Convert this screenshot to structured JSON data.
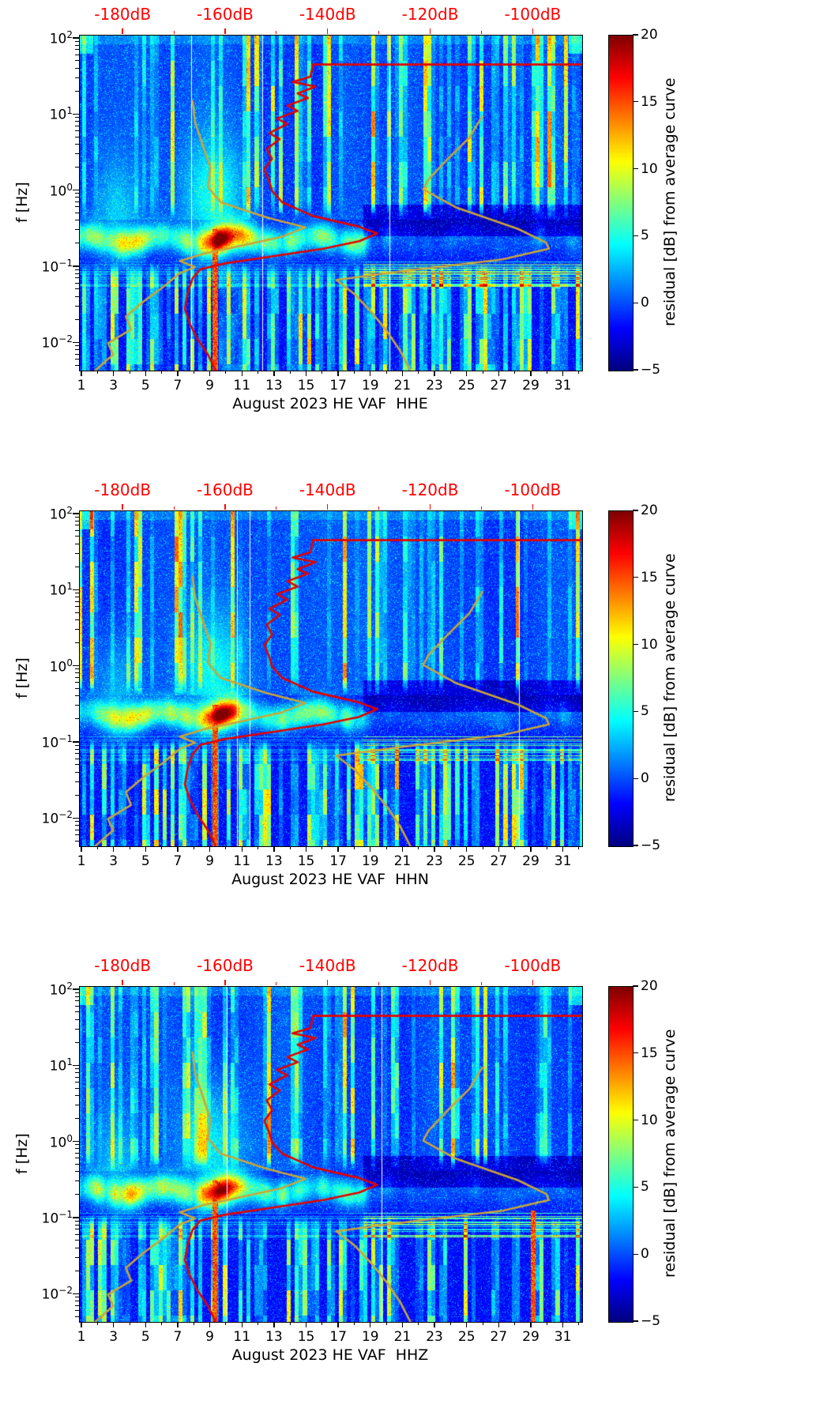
{
  "figure": {
    "y_axis": {
      "label": "f [Hz]",
      "tick_base": "10",
      "tick_exponents": [
        "2",
        "1",
        "0",
        "−1",
        "−2"
      ],
      "tick_values_log10": [
        2,
        1,
        0,
        -1,
        -2
      ],
      "range_log10": [
        -2.36,
        2.04
      ]
    },
    "x_axis": {
      "tick_labels": [
        "1",
        "3",
        "5",
        "7",
        "9",
        "11",
        "13",
        "15",
        "17",
        "19",
        "21",
        "23",
        "25",
        "27",
        "29",
        "31"
      ],
      "tick_days": [
        1,
        3,
        5,
        7,
        9,
        11,
        13,
        15,
        17,
        19,
        21,
        23,
        25,
        27,
        29,
        31
      ],
      "minor_days": [
        2,
        4,
        6,
        8,
        10,
        12,
        14,
        16,
        18,
        20,
        22,
        24,
        26,
        28,
        30,
        32
      ],
      "range_days": [
        0.85,
        32.15
      ]
    },
    "top_axis": {
      "tick_labels": [
        "-180dB",
        "-160dB",
        "-140dB",
        "-120dB",
        "-100dB"
      ],
      "tick_db": [
        -180,
        -160,
        -140,
        -120,
        -100
      ],
      "minor_db": [
        -170,
        -150,
        -130,
        -110
      ],
      "range_db": [
        -188.5,
        -90.5
      ],
      "color": "#ff0000"
    },
    "colorbar": {
      "label": "residual [dB] from average curve",
      "tick_labels": [
        "20",
        "15",
        "10",
        "5",
        "0",
        "−5"
      ],
      "tick_values": [
        20,
        15,
        10,
        5,
        0,
        -5
      ],
      "vmin": -5,
      "vmax": 20,
      "colormap": "jet"
    },
    "colors": {
      "curve_red": "#e50000",
      "curve_yellow": "#c9a53a",
      "axis_tick": "#000000"
    }
  },
  "chart_data": [
    {
      "type": "heatmap",
      "channel": "HHE",
      "xlabel": "August 2023 HE VAF  HHE",
      "x_unit": "day of August 2023",
      "y_unit": "frequency [Hz], log scale",
      "value_unit": "residual [dB] from average curve",
      "value_range": [
        -5,
        20
      ],
      "x_range_days": [
        0.85,
        32.15
      ],
      "y_range_hz": [
        0.0044,
        110
      ],
      "seed": 11,
      "features": {
        "microseism_band_hz": [
          0.12,
          0.35
        ],
        "microseism_peak": {
          "days": [
            8.5,
            11.5
          ],
          "freq_hz": 0.22,
          "residual_db": 20
        },
        "quiet_band": {
          "days": [
            19,
            32
          ],
          "freq_hz": [
            0.28,
            0.65
          ],
          "residual_db": -4
        },
        "event_columns_days": [
          9.3
        ],
        "stripe_texture": "daily vertical stripes +5 to +12 dB above 0.4 Hz and below 0.1 Hz"
      }
    },
    {
      "type": "heatmap",
      "channel": "HHN",
      "xlabel": "August 2023 HE VAF  HHN",
      "x_unit": "day of August 2023",
      "y_unit": "frequency [Hz], log scale",
      "value_unit": "residual [dB] from average curve",
      "value_range": [
        -5,
        20
      ],
      "x_range_days": [
        0.85,
        32.15
      ],
      "y_range_hz": [
        0.0044,
        110
      ],
      "seed": 23,
      "features": {
        "microseism_band_hz": [
          0.12,
          0.35
        ],
        "microseism_peak": {
          "days": [
            8.5,
            11.5
          ],
          "freq_hz": 0.22,
          "residual_db": 19
        },
        "quiet_band": {
          "days": [
            19,
            32
          ],
          "freq_hz": [
            0.28,
            0.65
          ],
          "residual_db": -4
        },
        "event_columns_days": [
          9.3
        ],
        "stripe_texture": "daily vertical stripes +5 to +12 dB above 0.4 Hz and below 0.1 Hz"
      }
    },
    {
      "type": "heatmap",
      "channel": "HHZ",
      "xlabel": "August 2023 HE VAF  HHZ",
      "x_unit": "day of August 2023",
      "y_unit": "frequency [Hz], log scale",
      "value_unit": "residual [dB] from average curve",
      "value_range": [
        -5,
        20
      ],
      "x_range_days": [
        0.85,
        32.15
      ],
      "y_range_hz": [
        0.0044,
        110
      ],
      "seed": 37,
      "features": {
        "microseism_band_hz": [
          0.12,
          0.35
        ],
        "microseism_peak": {
          "days": [
            8.5,
            11.5
          ],
          "freq_hz": 0.22,
          "residual_db": 18
        },
        "quiet_band": {
          "days": [
            19,
            32
          ],
          "freq_hz": [
            0.28,
            0.65
          ],
          "residual_db": -4
        },
        "event_columns_days": [
          9.3,
          29.1
        ],
        "stripe_texture": "daily vertical stripes +5 to +12 dB above 0.4 Hz and below 0.1 Hz"
      }
    }
  ],
  "overlay_curves": {
    "red_average_psd": {
      "axis": "top dB axis vs log10 frequency",
      "units": [
        "dB",
        "log10_f_Hz"
      ],
      "points": [
        [
          -90.5,
          1.66
        ],
        [
          -143,
          1.66
        ],
        [
          -143.5,
          1.5
        ],
        [
          -147,
          1.43
        ],
        [
          -142.5,
          1.37
        ],
        [
          -146,
          1.28
        ],
        [
          -144,
          1.22
        ],
        [
          -148,
          1.12
        ],
        [
          -146,
          1.05
        ],
        [
          -150,
          0.95
        ],
        [
          -148,
          0.88
        ],
        [
          -151.5,
          0.76
        ],
        [
          -149.5,
          0.68
        ],
        [
          -152,
          0.55
        ],
        [
          -151,
          0.42
        ],
        [
          -152.5,
          0.28
        ],
        [
          -151.5,
          0.12
        ],
        [
          -151,
          0.0
        ],
        [
          -149,
          -0.15
        ],
        [
          -143,
          -0.33
        ],
        [
          -134,
          -0.47
        ],
        [
          -130.5,
          -0.56
        ],
        [
          -134,
          -0.66
        ],
        [
          -141,
          -0.76
        ],
        [
          -151,
          -0.86
        ],
        [
          -160,
          -0.95
        ],
        [
          -165,
          -1.03
        ],
        [
          -166.5,
          -1.15
        ],
        [
          -167.5,
          -1.35
        ],
        [
          -168,
          -1.55
        ],
        [
          -167,
          -1.75
        ],
        [
          -165.5,
          -1.95
        ],
        [
          -163.5,
          -2.15
        ],
        [
          -162,
          -2.36
        ]
      ]
    },
    "yellow_model_left": {
      "axis": "top dB axis vs log10 frequency",
      "units": [
        "dB",
        "log10_f_Hz"
      ],
      "points": [
        [
          -166.5,
          1.18
        ],
        [
          -166,
          0.9
        ],
        [
          -164.5,
          0.6
        ],
        [
          -163,
          0.3
        ],
        [
          -163.5,
          0.05
        ],
        [
          -161,
          -0.15
        ],
        [
          -152,
          -0.35
        ],
        [
          -144.5,
          -0.48
        ],
        [
          -149,
          -0.6
        ],
        [
          -157,
          -0.72
        ],
        [
          -164,
          -0.82
        ],
        [
          -169,
          -0.92
        ],
        [
          -166,
          -1.0
        ],
        [
          -169,
          -1.08
        ],
        [
          -172,
          -1.25
        ],
        [
          -176,
          -1.45
        ],
        [
          -179.5,
          -1.65
        ],
        [
          -178.5,
          -1.82
        ],
        [
          -183,
          -2.0
        ],
        [
          -182,
          -2.15
        ],
        [
          -185.5,
          -2.36
        ]
      ]
    },
    "yellow_model_right": {
      "axis": "top dB axis vs log10 frequency",
      "units": [
        "dB",
        "log10_f_Hz"
      ],
      "points": [
        [
          -110,
          0.98
        ],
        [
          -112.5,
          0.7
        ],
        [
          -117,
          0.4
        ],
        [
          -120.5,
          0.15
        ],
        [
          -121.5,
          0.02
        ],
        [
          -115,
          -0.22
        ],
        [
          -103,
          -0.5
        ],
        [
          -97.5,
          -0.68
        ],
        [
          -97,
          -0.76
        ],
        [
          -106,
          -0.9
        ],
        [
          -125,
          -1.05
        ],
        [
          -138.5,
          -1.17
        ],
        [
          -135,
          -1.35
        ],
        [
          -131.5,
          -1.6
        ],
        [
          -128.5,
          -1.85
        ],
        [
          -126,
          -2.1
        ],
        [
          -124,
          -2.36
        ]
      ]
    }
  }
}
